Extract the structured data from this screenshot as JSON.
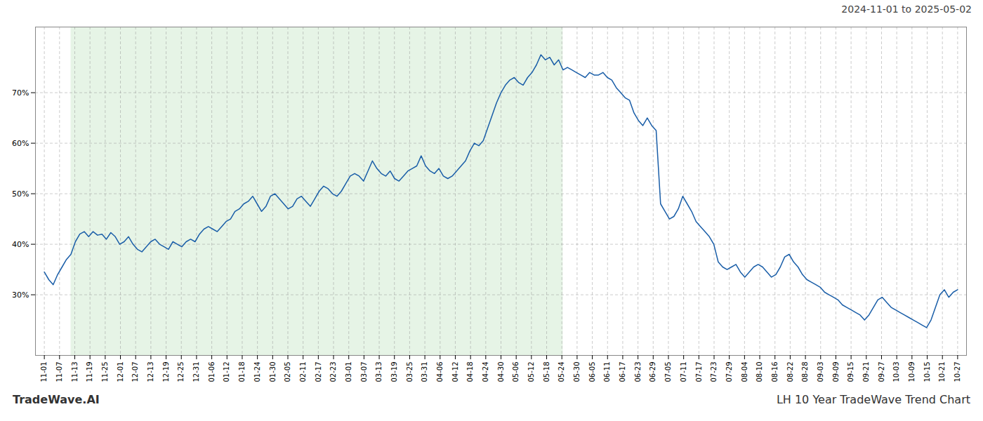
{
  "chart_data": {
    "type": "line",
    "title": "LH 10 Year TradeWave Trend Chart",
    "subtitle": "2024-11-01 to 2025-05-02",
    "annotations": [
      "TradeWave.AI"
    ],
    "color": "#1a5ea8",
    "grid": true,
    "x": [
      0,
      1,
      2,
      3,
      4,
      5,
      6,
      7,
      8,
      9,
      10,
      11,
      12,
      13,
      14,
      15,
      16,
      17,
      18,
      19,
      20,
      21,
      22,
      23,
      24,
      25,
      26,
      27,
      28,
      29,
      30,
      31,
      32,
      33,
      34,
      35,
      36,
      37,
      38,
      39,
      40,
      41,
      42,
      43,
      44,
      45,
      46,
      47,
      48,
      49,
      50,
      51,
      52,
      53,
      54,
      55,
      56,
      57,
      58,
      59,
      60,
      61,
      62,
      63,
      64,
      65,
      66,
      67,
      68,
      69,
      70,
      71,
      72,
      73,
      74,
      75,
      76,
      77,
      78,
      79,
      80,
      81,
      82,
      83,
      84,
      85,
      86,
      87,
      88,
      89,
      90,
      91,
      92,
      93,
      94,
      95,
      96,
      97,
      98,
      99,
      100,
      101,
      102,
      103,
      104,
      105,
      106,
      107,
      108,
      109,
      110,
      111,
      112,
      113,
      114,
      115,
      116,
      117,
      118,
      119,
      120,
      121,
      122,
      123,
      124,
      125,
      126,
      127,
      128,
      129,
      130,
      131,
      132,
      133,
      134,
      135,
      136,
      137,
      138,
      139,
      140,
      141,
      142,
      143,
      144,
      145,
      146,
      147,
      148,
      149,
      150,
      151,
      152,
      153,
      154,
      155,
      156,
      157,
      158,
      159,
      160,
      161,
      162,
      163,
      164,
      165,
      166,
      167,
      168,
      169,
      170,
      171,
      172,
      173,
      174,
      175,
      176,
      177,
      178,
      179,
      180,
      181,
      182,
      183,
      184,
      185,
      186,
      187,
      188,
      189,
      190,
      191,
      192,
      193,
      194,
      195,
      196,
      197,
      198,
      199,
      200,
      201,
      202,
      203,
      204,
      205,
      206
    ],
    "values": [
      34.5,
      33.0,
      32.0,
      34.0,
      35.5,
      37.0,
      38.0,
      40.5,
      42.0,
      42.5,
      41.5,
      42.5,
      41.8,
      42.0,
      41.0,
      42.3,
      41.5,
      40.0,
      40.5,
      41.5,
      40.0,
      39.0,
      38.5,
      39.5,
      40.5,
      41.0,
      40.0,
      39.5,
      39.0,
      40.5,
      40.0,
      39.5,
      40.5,
      41.0,
      40.5,
      42.0,
      43.0,
      43.5,
      43.0,
      42.5,
      43.5,
      44.5,
      45.0,
      46.5,
      47.0,
      48.0,
      48.5,
      49.5,
      48.0,
      46.5,
      47.5,
      49.5,
      50.0,
      49.0,
      48.0,
      47.0,
      47.5,
      49.0,
      49.5,
      48.5,
      47.5,
      49.0,
      50.5,
      51.5,
      51.0,
      50.0,
      49.5,
      50.5,
      52.0,
      53.5,
      54.0,
      53.5,
      52.5,
      54.5,
      56.5,
      55.0,
      54.0,
      53.5,
      54.5,
      53.0,
      52.5,
      53.5,
      54.5,
      55.0,
      55.5,
      57.5,
      55.5,
      54.5,
      54.0,
      55.0,
      53.5,
      53.0,
      53.5,
      54.5,
      55.5,
      56.5,
      58.5,
      60.0,
      59.5,
      60.5,
      63.0,
      65.5,
      68.0,
      70.0,
      71.5,
      72.5,
      73.0,
      72.0,
      71.5,
      73.0,
      74.0,
      75.5,
      77.5,
      76.5,
      77.0,
      75.5,
      76.5,
      74.5,
      75.0,
      74.5,
      74.0,
      73.5,
      73.0,
      74.0,
      73.5,
      73.5,
      74.0,
      73.0,
      72.5,
      71.0,
      70.0,
      69.0,
      68.5,
      66.0,
      64.5,
      63.5,
      65.0,
      63.5,
      62.5,
      48.0,
      46.5,
      45.0,
      45.5,
      47.0,
      49.5,
      48.0,
      46.5,
      44.5,
      43.5,
      42.5,
      41.5,
      40.0,
      36.5,
      35.5,
      35.0,
      35.5,
      36.0,
      34.5,
      33.5,
      34.5,
      35.5,
      36.0,
      35.5,
      34.5,
      33.5,
      34.0,
      35.5,
      37.5,
      38.0,
      36.5,
      35.5,
      34.0,
      33.0,
      32.5,
      32.0,
      31.5,
      30.5,
      30.0,
      29.5,
      29.0,
      28.0,
      27.5,
      27.0,
      26.5,
      26.0,
      25.0,
      26.0,
      27.5,
      29.0,
      29.5,
      28.5,
      27.5,
      27.0,
      26.5,
      26.0,
      25.5,
      25.0,
      24.5,
      24.0,
      23.5,
      25.0,
      27.5,
      30.0,
      31.0,
      29.5,
      30.5,
      31.0
    ],
    "shaded_region": {
      "x": [
        6,
        117
      ],
      "color": "#c8e6c8"
    },
    "xlim": [
      -2,
      208
    ],
    "xticks": [
      {
        "value": 0,
        "label": "11-01"
      },
      {
        "value": 3.433333333333333,
        "label": "11-07"
      },
      {
        "value": 6.866666666666666,
        "label": "11-13"
      },
      {
        "value": 10.3,
        "label": "11-19"
      },
      {
        "value": 13.733333333333333,
        "label": "11-25"
      },
      {
        "value": 17.166666666666668,
        "label": "12-01"
      },
      {
        "value": 20.6,
        "label": "12-07"
      },
      {
        "value": 24.033333333333335,
        "label": "12-13"
      },
      {
        "value": 27.466666666666665,
        "label": "12-19"
      },
      {
        "value": 30.9,
        "label": "12-25"
      },
      {
        "value": 34.333333333333336,
        "label": "12-31"
      },
      {
        "value": 37.766666666666666,
        "label": "01-06"
      },
      {
        "value": 41.2,
        "label": "01-12"
      },
      {
        "value": 44.63333333333333,
        "label": "01-18"
      },
      {
        "value": 48.06666666666667,
        "label": "01-24"
      },
      {
        "value": 51.5,
        "label": "01-30"
      },
      {
        "value": 54.93333333333333,
        "label": "02-05"
      },
      {
        "value": 58.36666666666667,
        "label": "02-11"
      },
      {
        "value": 61.8,
        "label": "02-17"
      },
      {
        "value": 65.23333333333333,
        "label": "02-23"
      },
      {
        "value": 68.66666666666667,
        "label": "03-01"
      },
      {
        "value": 72.1,
        "label": "03-07"
      },
      {
        "value": 75.53333333333333,
        "label": "03-13"
      },
      {
        "value": 78.96666666666667,
        "label": "03-19"
      },
      {
        "value": 82.4,
        "label": "03-25"
      },
      {
        "value": 85.83333333333333,
        "label": "03-31"
      },
      {
        "value": 89.26666666666667,
        "label": "04-06"
      },
      {
        "value": 92.7,
        "label": "04-12"
      },
      {
        "value": 96.13333333333334,
        "label": "04-18"
      },
      {
        "value": 99.56666666666666,
        "label": "04-24"
      },
      {
        "value": 103,
        "label": "04-30"
      },
      {
        "value": 106.43333333333334,
        "label": "05-06"
      },
      {
        "value": 109.86666666666666,
        "label": "05-12"
      },
      {
        "value": 113.3,
        "label": "05-18"
      },
      {
        "value": 116.73333333333333,
        "label": "05-24"
      },
      {
        "value": 120.16666666666667,
        "label": "05-30"
      },
      {
        "value": 123.6,
        "label": "06-05"
      },
      {
        "value": 127.03333333333333,
        "label": "06-11"
      },
      {
        "value": 130.46666666666667,
        "label": "06-17"
      },
      {
        "value": 133.9,
        "label": "06-23"
      },
      {
        "value": 137.33333333333334,
        "label": "06-29"
      },
      {
        "value": 140.76666666666668,
        "label": "07-05"
      },
      {
        "value": 144.2,
        "label": "07-11"
      },
      {
        "value": 147.63333333333333,
        "label": "07-17"
      },
      {
        "value": 151.06666666666666,
        "label": "07-23"
      },
      {
        "value": 154.5,
        "label": "07-29"
      },
      {
        "value": 157.93333333333334,
        "label": "08-04"
      },
      {
        "value": 161.36666666666667,
        "label": "08-10"
      },
      {
        "value": 164.8,
        "label": "08-16"
      },
      {
        "value": 168.23333333333332,
        "label": "08-22"
      },
      {
        "value": 171.66666666666666,
        "label": "08-28"
      },
      {
        "value": 175.1,
        "label": "09-03"
      },
      {
        "value": 178.53333333333333,
        "label": "09-09"
      },
      {
        "value": 181.96666666666667,
        "label": "09-15"
      },
      {
        "value": 185.4,
        "label": "09-21"
      },
      {
        "value": 188.83333333333334,
        "label": "09-27"
      },
      {
        "value": 192.26666666666668,
        "label": "10-03"
      },
      {
        "value": 195.7,
        "label": "10-09"
      },
      {
        "value": 199.13333333333333,
        "label": "10-15"
      },
      {
        "value": 202.56666666666666,
        "label": "10-21"
      },
      {
        "value": 206,
        "label": "10-27"
      }
    ],
    "ylim": [
      18,
      83
    ],
    "yticks": [
      {
        "value": 30,
        "label": "30%"
      },
      {
        "value": 40,
        "label": "40%"
      },
      {
        "value": 50,
        "label": "50%"
      },
      {
        "value": 60,
        "label": "60%"
      },
      {
        "value": 70,
        "label": "70%"
      }
    ]
  }
}
